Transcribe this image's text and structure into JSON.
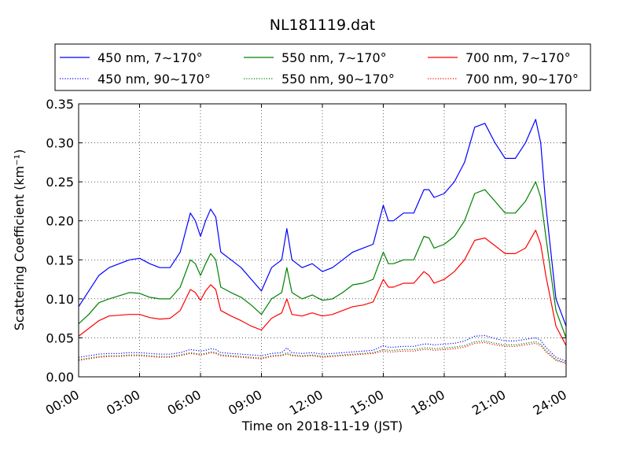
{
  "chart_data": {
    "type": "line",
    "title": "NL181119.dat",
    "xlabel": "Time on 2018-11-19 (JST)",
    "ylabel": "Scattering Coefficient (km⁻¹)",
    "xlim": [
      0,
      24
    ],
    "ylim": [
      0,
      0.35
    ],
    "grid": true,
    "legend_position": "top",
    "x_ticks": [
      0,
      3,
      6,
      9,
      12,
      15,
      18,
      21,
      24
    ],
    "x_tick_labels": [
      "00:00",
      "03:00",
      "06:00",
      "09:00",
      "12:00",
      "15:00",
      "18:00",
      "21:00",
      "24:00"
    ],
    "y_ticks": [
      0,
      0.05,
      0.1,
      0.15,
      0.2,
      0.25,
      0.3,
      0.35
    ],
    "y_tick_labels": [
      "0.00",
      "0.05",
      "0.10",
      "0.15",
      "0.20",
      "0.25",
      "0.30",
      "0.35"
    ],
    "x": [
      0,
      0.5,
      1,
      1.5,
      2,
      2.5,
      3,
      3.5,
      4,
      4.5,
      5,
      5.5,
      5.75,
      6,
      6.25,
      6.5,
      6.75,
      7,
      7.5,
      8,
      8.5,
      9,
      9.5,
      10,
      10.25,
      10.5,
      11,
      11.5,
      12,
      12.5,
      13,
      13.5,
      14,
      14.5,
      15,
      15.25,
      15.5,
      16,
      16.5,
      17,
      17.25,
      17.5,
      18,
      18.5,
      19,
      19.5,
      20,
      20.5,
      21,
      21.5,
      22,
      22.5,
      22.75,
      23,
      23.5,
      24
    ],
    "series": [
      {
        "name": "450 nm, 7∼170°",
        "color": "#0000ff",
        "style": "solid",
        "values": [
          0.09,
          0.11,
          0.13,
          0.14,
          0.145,
          0.15,
          0.152,
          0.145,
          0.14,
          0.14,
          0.16,
          0.21,
          0.2,
          0.18,
          0.2,
          0.215,
          0.205,
          0.16,
          0.15,
          0.14,
          0.125,
          0.11,
          0.14,
          0.15,
          0.19,
          0.15,
          0.14,
          0.145,
          0.135,
          0.14,
          0.15,
          0.16,
          0.165,
          0.17,
          0.22,
          0.2,
          0.2,
          0.21,
          0.21,
          0.24,
          0.24,
          0.23,
          0.235,
          0.25,
          0.275,
          0.32,
          0.325,
          0.3,
          0.28,
          0.28,
          0.3,
          0.33,
          0.3,
          0.22,
          0.1,
          0.065
        ]
      },
      {
        "name": "450 nm, 90∼170°",
        "color": "#0000ff",
        "style": "dotted",
        "values": [
          0.025,
          0.027,
          0.029,
          0.03,
          0.03,
          0.031,
          0.031,
          0.03,
          0.029,
          0.029,
          0.031,
          0.035,
          0.034,
          0.033,
          0.034,
          0.036,
          0.035,
          0.031,
          0.03,
          0.029,
          0.028,
          0.027,
          0.03,
          0.031,
          0.037,
          0.031,
          0.03,
          0.031,
          0.029,
          0.03,
          0.031,
          0.032,
          0.033,
          0.034,
          0.04,
          0.038,
          0.038,
          0.039,
          0.039,
          0.042,
          0.042,
          0.041,
          0.042,
          0.043,
          0.046,
          0.052,
          0.053,
          0.049,
          0.046,
          0.046,
          0.048,
          0.05,
          0.047,
          0.038,
          0.025,
          0.02
        ]
      },
      {
        "name": "550 nm, 7∼170°",
        "color": "#008000",
        "style": "solid",
        "values": [
          0.068,
          0.08,
          0.095,
          0.1,
          0.104,
          0.108,
          0.107,
          0.102,
          0.1,
          0.1,
          0.115,
          0.15,
          0.145,
          0.13,
          0.145,
          0.158,
          0.15,
          0.115,
          0.108,
          0.102,
          0.092,
          0.08,
          0.1,
          0.108,
          0.14,
          0.108,
          0.1,
          0.105,
          0.098,
          0.1,
          0.108,
          0.118,
          0.12,
          0.125,
          0.16,
          0.145,
          0.145,
          0.15,
          0.15,
          0.18,
          0.178,
          0.165,
          0.17,
          0.18,
          0.2,
          0.235,
          0.24,
          0.225,
          0.21,
          0.21,
          0.225,
          0.25,
          0.23,
          0.18,
          0.085,
          0.05
        ]
      },
      {
        "name": "550 nm, 90∼170°",
        "color": "#008000",
        "style": "dotted",
        "values": [
          0.022,
          0.024,
          0.026,
          0.027,
          0.027,
          0.028,
          0.028,
          0.027,
          0.026,
          0.026,
          0.028,
          0.031,
          0.03,
          0.029,
          0.03,
          0.032,
          0.031,
          0.028,
          0.027,
          0.026,
          0.025,
          0.024,
          0.027,
          0.028,
          0.031,
          0.028,
          0.027,
          0.028,
          0.026,
          0.027,
          0.028,
          0.029,
          0.03,
          0.031,
          0.035,
          0.034,
          0.034,
          0.035,
          0.035,
          0.037,
          0.037,
          0.036,
          0.037,
          0.038,
          0.04,
          0.045,
          0.046,
          0.043,
          0.041,
          0.041,
          0.043,
          0.045,
          0.042,
          0.034,
          0.022,
          0.018
        ]
      },
      {
        "name": "700 nm, 7∼170°",
        "color": "#ff0000",
        "style": "solid",
        "values": [
          0.052,
          0.062,
          0.072,
          0.078,
          0.079,
          0.08,
          0.08,
          0.076,
          0.074,
          0.075,
          0.085,
          0.112,
          0.108,
          0.098,
          0.11,
          0.118,
          0.112,
          0.085,
          0.078,
          0.072,
          0.065,
          0.06,
          0.075,
          0.082,
          0.1,
          0.08,
          0.078,
          0.082,
          0.078,
          0.08,
          0.085,
          0.09,
          0.092,
          0.096,
          0.125,
          0.115,
          0.115,
          0.12,
          0.12,
          0.135,
          0.13,
          0.12,
          0.125,
          0.135,
          0.15,
          0.175,
          0.178,
          0.168,
          0.158,
          0.158,
          0.165,
          0.188,
          0.17,
          0.13,
          0.065,
          0.04
        ]
      },
      {
        "name": "700 nm, 90∼170°",
        "color": "#ff0000",
        "style": "dotted",
        "values": [
          0.021,
          0.023,
          0.025,
          0.026,
          0.026,
          0.027,
          0.027,
          0.026,
          0.025,
          0.025,
          0.027,
          0.03,
          0.029,
          0.028,
          0.029,
          0.031,
          0.03,
          0.027,
          0.026,
          0.025,
          0.024,
          0.023,
          0.026,
          0.027,
          0.029,
          0.027,
          0.026,
          0.027,
          0.025,
          0.026,
          0.027,
          0.028,
          0.029,
          0.03,
          0.033,
          0.032,
          0.032,
          0.033,
          0.033,
          0.035,
          0.035,
          0.034,
          0.035,
          0.036,
          0.038,
          0.043,
          0.044,
          0.041,
          0.039,
          0.039,
          0.041,
          0.043,
          0.04,
          0.032,
          0.021,
          0.017
        ]
      }
    ]
  }
}
